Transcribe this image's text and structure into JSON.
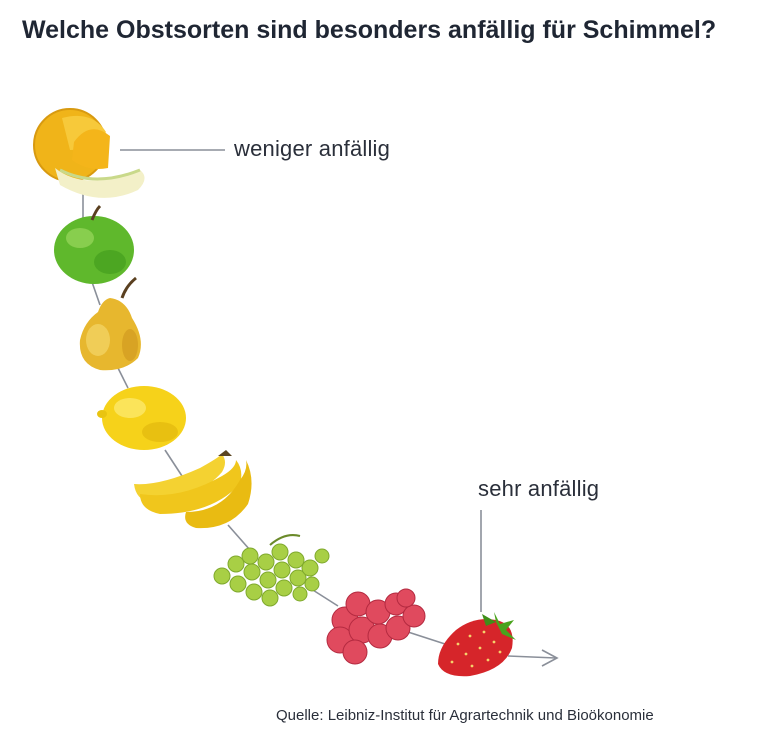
{
  "title": "Welche Obstsorten sind besonders anfällig für Schimmel?",
  "labels": {
    "low": "weniger anfällig",
    "high": "sehr anfällig"
  },
  "source": "Quelle: Leibniz-Institut für Agrartechnik und Bioökonomie",
  "fruits_order": [
    "melon-and-orange",
    "apple",
    "pear",
    "lemon",
    "bananas",
    "grapes",
    "raspberries",
    "strawberry"
  ]
}
